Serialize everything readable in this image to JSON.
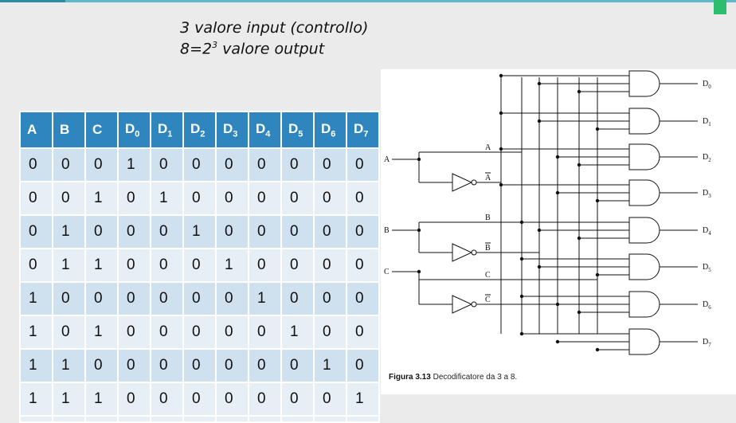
{
  "notes": {
    "line1": "3 valore input (controllo)",
    "line2_prefix": "8=2",
    "line2_exp": "3",
    "line2_suffix": " valore output"
  },
  "table": {
    "headers": [
      {
        "base": "A",
        "sub": ""
      },
      {
        "base": "B",
        "sub": ""
      },
      {
        "base": "C",
        "sub": ""
      },
      {
        "base": "D",
        "sub": "0"
      },
      {
        "base": "D",
        "sub": "1"
      },
      {
        "base": "D",
        "sub": "2"
      },
      {
        "base": "D",
        "sub": "3"
      },
      {
        "base": "D",
        "sub": "4"
      },
      {
        "base": "D",
        "sub": "5"
      },
      {
        "base": "D",
        "sub": "6"
      },
      {
        "base": "D",
        "sub": "7"
      }
    ],
    "rows": [
      [
        "0",
        "0",
        "0",
        "1",
        "0",
        "0",
        "0",
        "0",
        "0",
        "0",
        "0"
      ],
      [
        "0",
        "0",
        "1",
        "0",
        "1",
        "0",
        "0",
        "0",
        "0",
        "0",
        "0"
      ],
      [
        "0",
        "1",
        "0",
        "0",
        "0",
        "1",
        "0",
        "0",
        "0",
        "0",
        "0"
      ],
      [
        "0",
        "1",
        "1",
        "0",
        "0",
        "0",
        "1",
        "0",
        "0",
        "0",
        "0"
      ],
      [
        "1",
        "0",
        "0",
        "0",
        "0",
        "0",
        "0",
        "1",
        "0",
        "0",
        "0"
      ],
      [
        "1",
        "0",
        "1",
        "0",
        "0",
        "0",
        "0",
        "0",
        "1",
        "0",
        "0"
      ],
      [
        "1",
        "1",
        "0",
        "0",
        "0",
        "0",
        "0",
        "0",
        "0",
        "1",
        "0"
      ],
      [
        "1",
        "1",
        "1",
        "0",
        "0",
        "0",
        "0",
        "0",
        "0",
        "0",
        "1"
      ]
    ]
  },
  "figure": {
    "inputs": [
      "A",
      "B",
      "C"
    ],
    "line_labels": [
      "A",
      "A",
      "B",
      "B",
      "C",
      "C"
    ],
    "outputs": [
      "D",
      "D",
      "D",
      "D",
      "D",
      "D",
      "D",
      "D"
    ],
    "output_subs": [
      "0",
      "1",
      "2",
      "3",
      "4",
      "5",
      "6",
      "7"
    ],
    "caption_label": "Figura 3.13",
    "caption_text": " Decodificatore da 3 a 8."
  },
  "colors": {
    "header_bg": "#2f86bf",
    "row_bg": "#cfe1ef",
    "row_alt_bg": "#e7eff6",
    "accent_rule": "#5fb8c8",
    "corner": "#2dbd6e"
  }
}
